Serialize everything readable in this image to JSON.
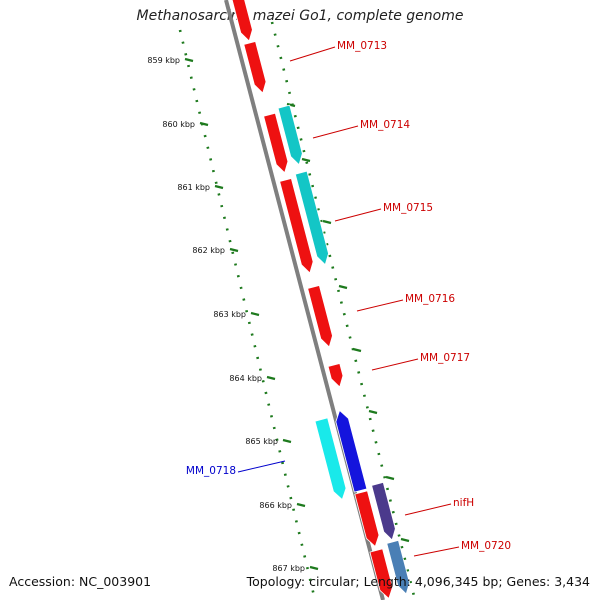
{
  "title": "Methanosarcina mazei Go1, complete genome",
  "footer": {
    "accession": "Accession: NC_003901",
    "summary": "Topology: circular; Length: 4,096,345 bp; Genes: 3,434"
  },
  "colors": {
    "backbone": "#7f7f7f",
    "tick": "#1e7a1e",
    "red": "#ee1111",
    "cyan": "#13c6c6",
    "light_cyan": "#19e9ea",
    "blue": "#1414dd",
    "purple": "#4b3a8c",
    "steel": "#4a7fb5",
    "label_red": "#cc0000",
    "label_blue": "#0000cc"
  },
  "kbp_ticks": [
    "859 kbp",
    "860 kbp",
    "861 kbp",
    "862 kbp",
    "863 kbp",
    "864 kbp",
    "865 kbp",
    "866 kbp",
    "867 kbp"
  ],
  "gene_labels": [
    {
      "text": "MM_0713",
      "color": "label_red"
    },
    {
      "text": "MM_0714",
      "color": "label_red"
    },
    {
      "text": "MM_0715",
      "color": "label_red"
    },
    {
      "text": "MM_0716",
      "color": "label_red"
    },
    {
      "text": "MM_0717",
      "color": "label_red"
    },
    {
      "text": "MM_0718",
      "color": "label_blue"
    },
    {
      "text": "nifH",
      "color": "label_red"
    },
    {
      "text": "MM_0720",
      "color": "label_red"
    }
  ]
}
